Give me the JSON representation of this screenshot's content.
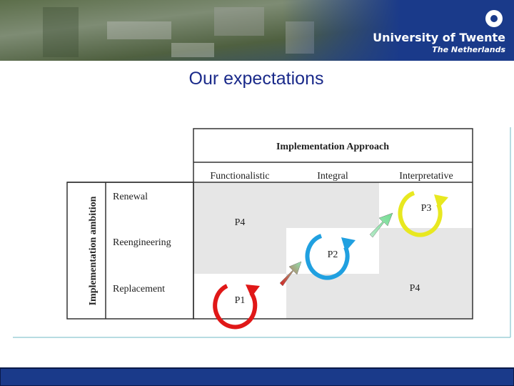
{
  "header": {
    "logo_title": "University of Twente",
    "logo_subtitle": "The Netherlands"
  },
  "title": "Our expectations",
  "matrix": {
    "column_header": "Implementation Approach",
    "columns": [
      "Functionalistic",
      "Integral",
      "Interpretative"
    ],
    "row_header": "Implementation ambition",
    "rows": [
      "Renewal",
      "Reengineering",
      "Replacement"
    ],
    "cells": [
      "P4",
      "P2",
      "P3",
      "P1",
      "P4"
    ]
  }
}
